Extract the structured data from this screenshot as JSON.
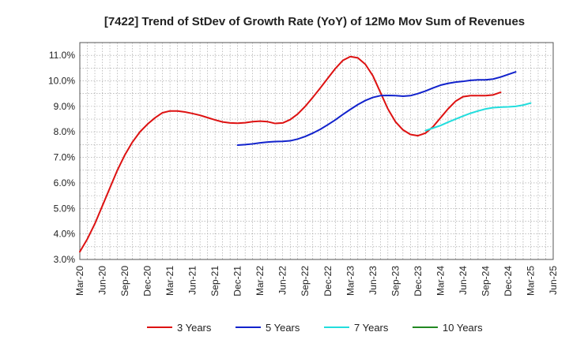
{
  "chart_data": {
    "type": "line",
    "title": "[7422]  Trend of StDev of Growth Rate (YoY) of 12Mo Mov Sum of Revenues",
    "xlabel": "",
    "ylabel": "",
    "ylim": [
      3.0,
      11.5
    ],
    "y_ticks": [
      3.0,
      4.0,
      5.0,
      6.0,
      7.0,
      8.0,
      9.0,
      10.0,
      11.0
    ],
    "y_tick_labels": [
      "3.0%",
      "4.0%",
      "5.0%",
      "6.0%",
      "7.0%",
      "8.0%",
      "9.0%",
      "10.0%",
      "11.0%"
    ],
    "x_tick_labels": [
      "Mar-20",
      "Jun-20",
      "Sep-20",
      "Dec-20",
      "Mar-21",
      "Jun-21",
      "Sep-21",
      "Dec-21",
      "Mar-22",
      "Jun-22",
      "Sep-22",
      "Dec-22",
      "Mar-23",
      "Jun-23",
      "Sep-23",
      "Dec-23",
      "Mar-24",
      "Jun-24",
      "Sep-24",
      "Dec-24",
      "Mar-25",
      "Jun-25"
    ],
    "x_count": 64,
    "grid": true,
    "legend_position": "bottom",
    "series": [
      {
        "name": "3 Years",
        "color": "#dd1111",
        "start_index": 0,
        "values": [
          3.3,
          3.8,
          4.4,
          5.1,
          5.8,
          6.5,
          7.1,
          7.6,
          8.0,
          8.3,
          8.55,
          8.75,
          8.82,
          8.82,
          8.78,
          8.72,
          8.65,
          8.56,
          8.47,
          8.39,
          8.35,
          8.34,
          8.36,
          8.4,
          8.42,
          8.4,
          8.33,
          8.35,
          8.48,
          8.7,
          9.0,
          9.35,
          9.72,
          10.1,
          10.48,
          10.8,
          10.95,
          10.9,
          10.65,
          10.2,
          9.55,
          8.9,
          8.4,
          8.08,
          7.9,
          7.85,
          7.95,
          8.2,
          8.55,
          8.9,
          9.2,
          9.38,
          9.42,
          9.42,
          9.42,
          9.45,
          9.55
        ]
      },
      {
        "name": "5 Years",
        "color": "#1122cc",
        "start_index": 21,
        "values": [
          7.48,
          7.5,
          7.53,
          7.57,
          7.6,
          7.62,
          7.63,
          7.65,
          7.72,
          7.82,
          7.95,
          8.1,
          8.28,
          8.47,
          8.68,
          8.88,
          9.07,
          9.23,
          9.35,
          9.42,
          9.43,
          9.42,
          9.4,
          9.42,
          9.5,
          9.6,
          9.72,
          9.83,
          9.9,
          9.95,
          9.98,
          10.02,
          10.04,
          10.04,
          10.07,
          10.15,
          10.25,
          10.35
        ]
      },
      {
        "name": "7 Years",
        "color": "#22dddd",
        "start_index": 46,
        "values": [
          8.05,
          8.15,
          8.25,
          8.38,
          8.5,
          8.62,
          8.73,
          8.82,
          8.9,
          8.95,
          8.97,
          8.98,
          9.0,
          9.05,
          9.13
        ]
      },
      {
        "name": "10 Years",
        "color": "#228822",
        "start_index": 0,
        "values": []
      }
    ]
  }
}
